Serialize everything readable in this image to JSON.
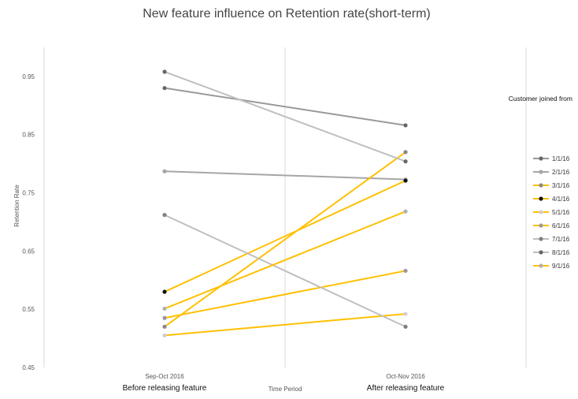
{
  "chart_data": {
    "type": "line",
    "title": "New feature influence on Retention rate(short-term)",
    "xlabel": "Time Period",
    "ylabel": "Retention Rate",
    "categories": [
      "Sep-Oct 2016",
      "Oct-Nov 2016"
    ],
    "category_sublabels": [
      "Before releasing feature",
      "After releasing feature"
    ],
    "ylim": [
      0.45,
      1.0
    ],
    "yticks": [
      "0.45",
      "0.55",
      "0.65",
      "0.75",
      "0.85",
      "0.95"
    ],
    "grid": "vertical",
    "legend_title": "Customer joined from",
    "legend_position": "right",
    "series": [
      {
        "name": "1/1/16",
        "values": [
          0.93,
          0.866
        ],
        "color": "#999999",
        "marker": "#666666"
      },
      {
        "name": "2/1/16",
        "values": [
          0.787,
          0.773
        ],
        "color": "#a6a6a6",
        "marker": "#a6a6a6"
      },
      {
        "name": "3/1/16",
        "values": [
          0.52,
          0.82
        ],
        "color": "#ffc000",
        "marker": "#888888"
      },
      {
        "name": "4/1/16",
        "values": [
          0.58,
          0.771
        ],
        "color": "#ffc000",
        "marker": "#111111"
      },
      {
        "name": "5/1/16",
        "values": [
          0.505,
          0.542
        ],
        "color": "#ffc000",
        "marker": "#d0d0d0"
      },
      {
        "name": "6/1/16",
        "values": [
          0.535,
          0.616
        ],
        "color": "#ffc000",
        "marker": "#999999"
      },
      {
        "name": "7/1/16",
        "values": [
          0.712,
          0.52
        ],
        "color": "#bfbfbf",
        "marker": "#808080"
      },
      {
        "name": "8/1/16",
        "values": [
          0.958,
          0.804
        ],
        "color": "#bfbfbf",
        "marker": "#666666"
      },
      {
        "name": "9/1/16",
        "values": [
          0.551,
          0.718
        ],
        "color": "#ffc000",
        "marker": "#b0b0b0"
      }
    ]
  }
}
